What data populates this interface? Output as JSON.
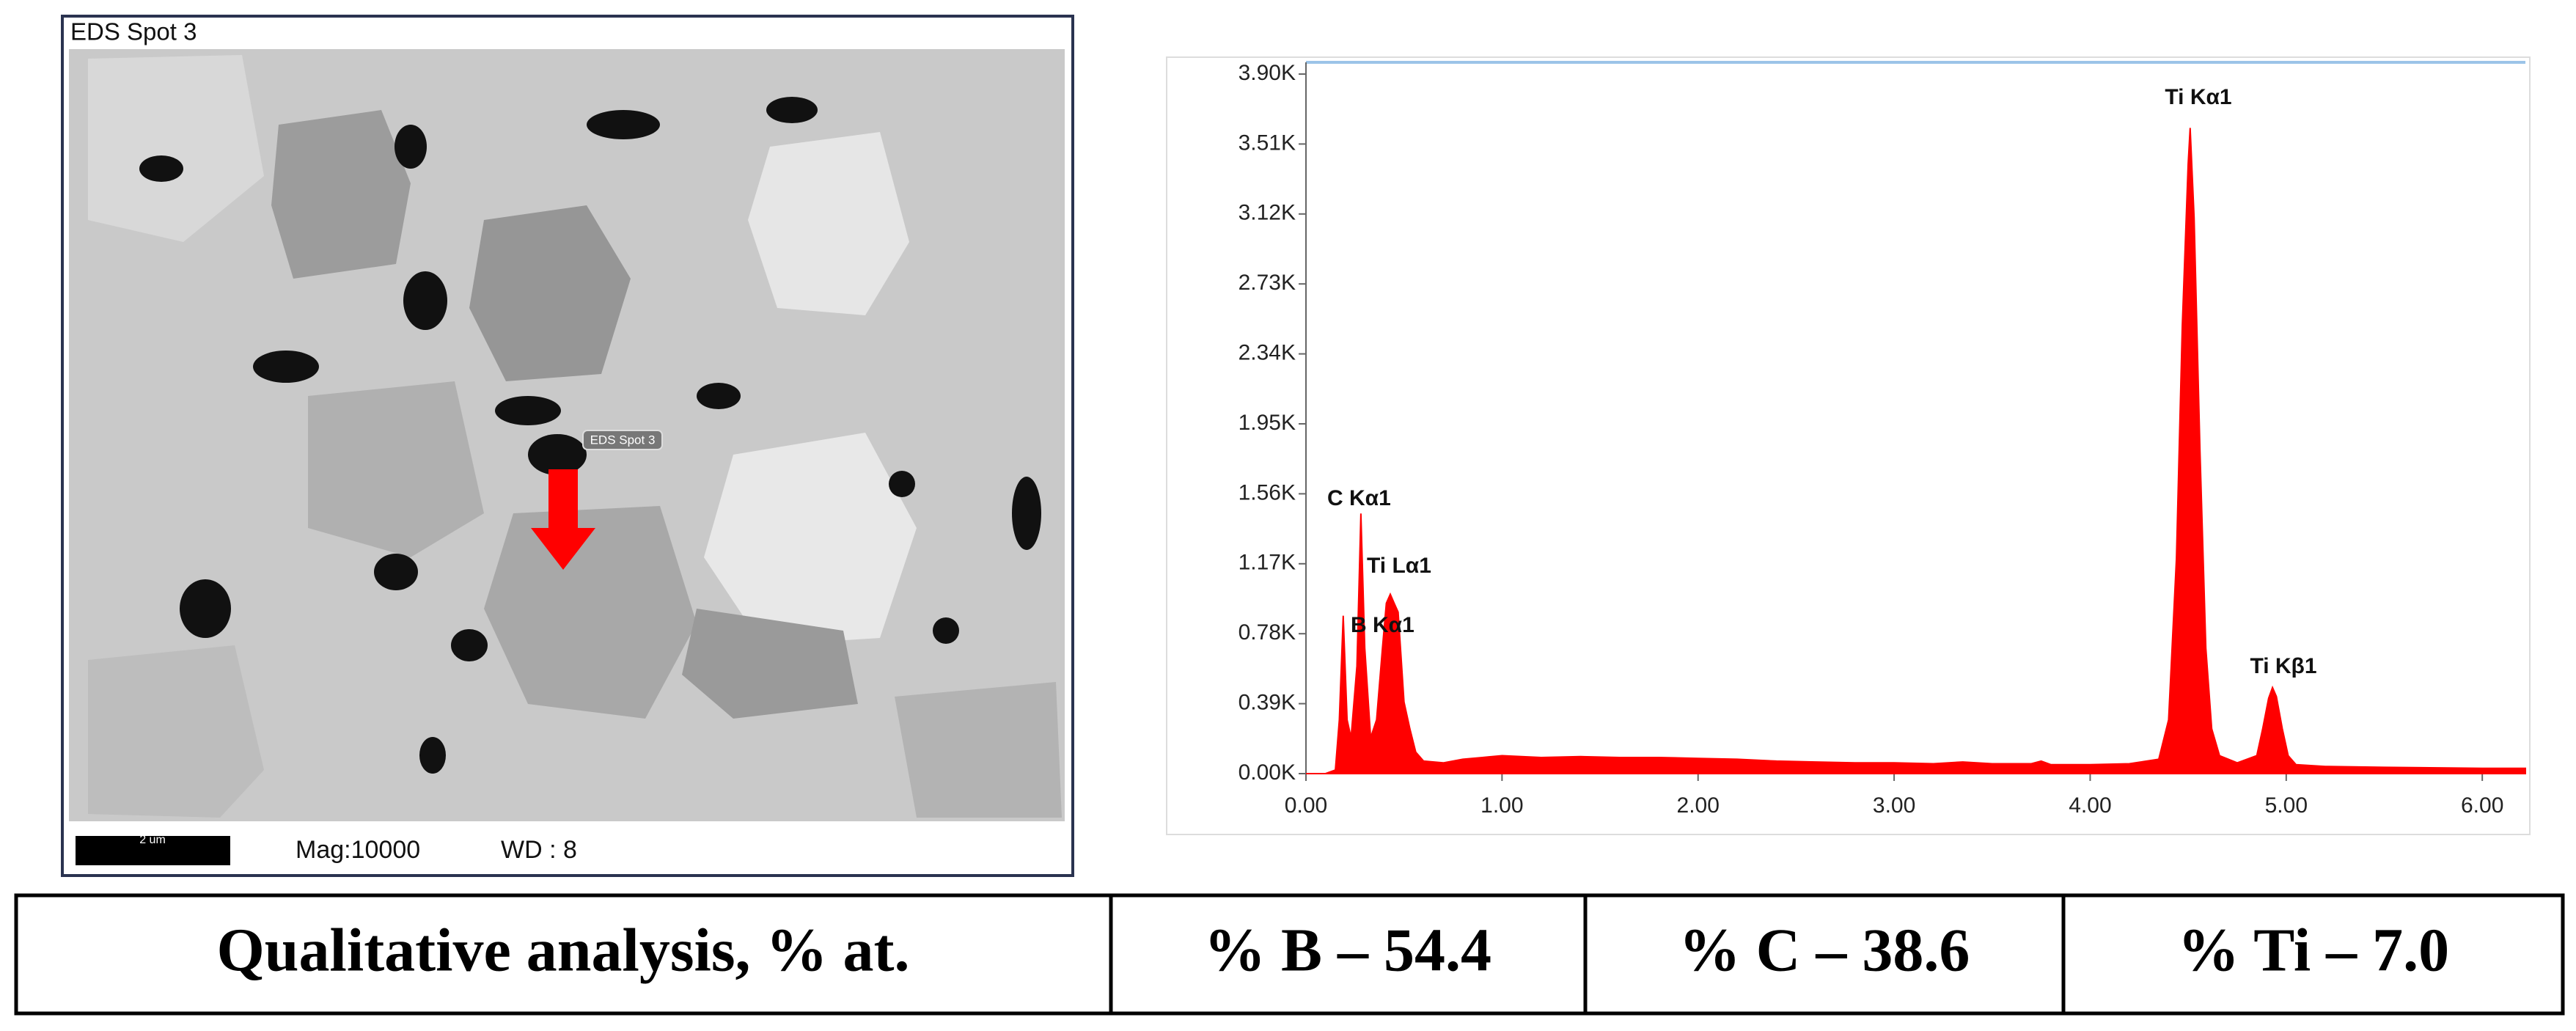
{
  "image": {
    "title": "EDS Spot 3",
    "marker_label": "EDS Spot 3",
    "scale_bar": "2 um",
    "magnification": "Mag:10000",
    "working_distance": "WD : 8"
  },
  "chart_data": {
    "type": "area",
    "color": "#ff0000",
    "x": [
      0.0,
      0.1,
      0.15,
      0.17,
      0.19,
      0.21,
      0.23,
      0.26,
      0.28,
      0.3,
      0.33,
      0.36,
      0.39,
      0.41,
      0.43,
      0.45,
      0.47,
      0.5,
      0.53,
      0.56,
      0.6,
      0.7,
      0.8,
      0.9,
      1.0,
      1.1,
      1.2,
      1.4,
      1.6,
      1.8,
      2.0,
      2.2,
      2.4,
      2.6,
      2.8,
      3.0,
      3.2,
      3.35,
      3.5,
      3.7,
      3.75,
      3.8,
      4.0,
      4.2,
      4.35,
      4.4,
      4.44,
      4.47,
      4.5,
      4.51,
      4.53,
      4.56,
      4.59,
      4.62,
      4.66,
      4.75,
      4.85,
      4.88,
      4.91,
      4.93,
      4.95,
      4.98,
      5.01,
      5.05,
      5.2,
      5.5,
      6.0,
      6.22
    ],
    "values": [
      0,
      0,
      20,
      300,
      880,
      300,
      200,
      600,
      1450,
      700,
      200,
      300,
      700,
      950,
      1000,
      950,
      900,
      400,
      250,
      120,
      70,
      60,
      80,
      90,
      100,
      95,
      90,
      95,
      90,
      90,
      85,
      80,
      70,
      65,
      60,
      60,
      55,
      65,
      55,
      55,
      70,
      50,
      50,
      55,
      80,
      300,
      1200,
      2500,
      3400,
      3600,
      3100,
      1800,
      700,
      250,
      100,
      60,
      100,
      250,
      420,
      480,
      430,
      250,
      100,
      50,
      40,
      35,
      30,
      30
    ],
    "xlim": [
      0,
      6.22
    ],
    "xticks": [
      {
        "value": 0,
        "label": "0.00"
      },
      {
        "value": 1,
        "label": "1.00"
      },
      {
        "value": 2,
        "label": "2.00"
      },
      {
        "value": 3,
        "label": "3.00"
      },
      {
        "value": 4,
        "label": "4.00"
      },
      {
        "value": 5,
        "label": "5.00"
      },
      {
        "value": 6,
        "label": "6.00"
      }
    ],
    "ylim": [
      0,
      3900
    ],
    "yticks": [
      {
        "value": 0,
        "label": "0.00K"
      },
      {
        "value": 390,
        "label": "0.39K"
      },
      {
        "value": 780,
        "label": "0.78K"
      },
      {
        "value": 1170,
        "label": "1.17K"
      },
      {
        "value": 1560,
        "label": "1.56K"
      },
      {
        "value": 1950,
        "label": "1.95K"
      },
      {
        "value": 2340,
        "label": "2.34K"
      },
      {
        "value": 2730,
        "label": "2.73K"
      },
      {
        "value": 3120,
        "label": "3.12K"
      },
      {
        "value": 3510,
        "label": "3.51K"
      },
      {
        "value": 3900,
        "label": "3.90K"
      }
    ],
    "annotations": [
      "Ti Kα1",
      "C  Kα1",
      "Ti Lα1",
      "B  Kα1",
      "Ti Kβ1"
    ]
  },
  "table": {
    "rows": [
      [
        "Qualitative analysis, % at.",
        "% B – 54.4",
        "% C – 38.6",
        "% Ti – 7.0"
      ]
    ]
  }
}
